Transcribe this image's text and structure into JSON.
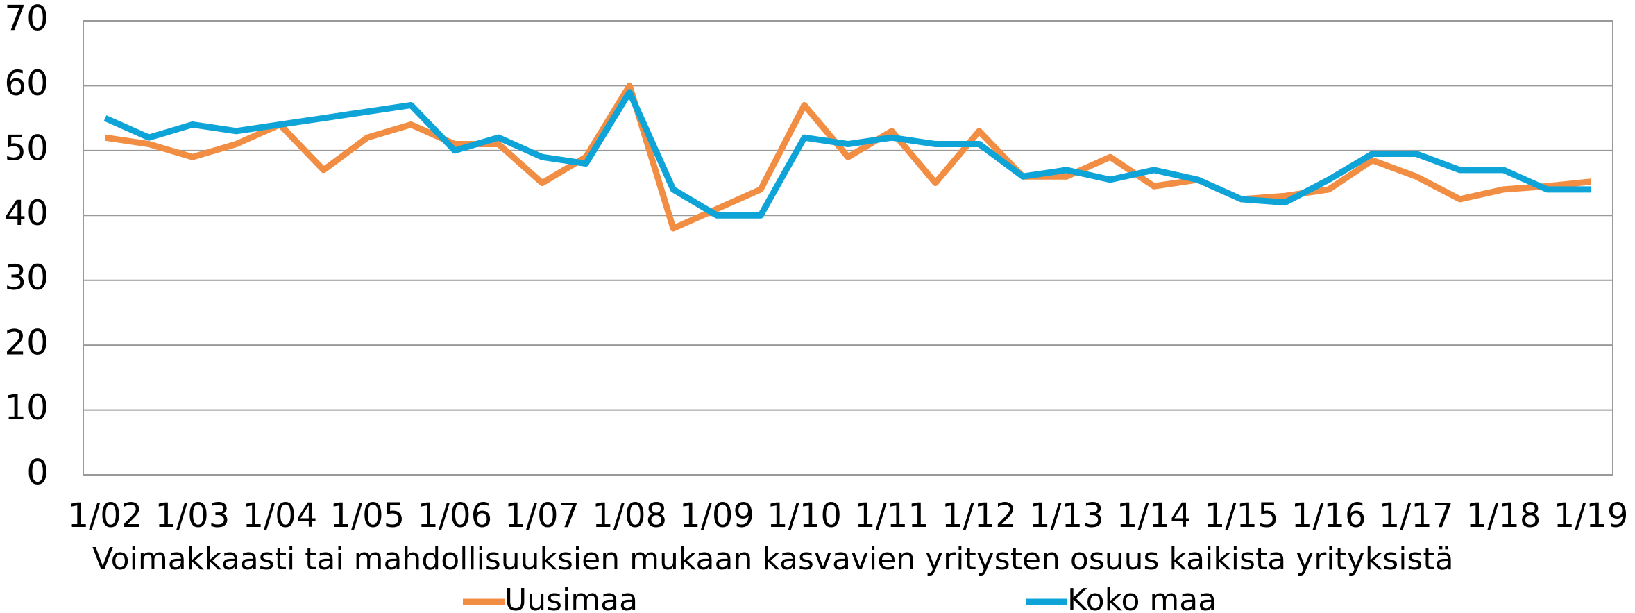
{
  "chart_data": {
    "type": "line",
    "x_label": "Voimakkaasti tai mahdollisuuksien mukaan kasvavien yritysten osuus kaikista yrityksistä",
    "categories": [
      "1/02",
      null,
      "1/03",
      null,
      "1/04",
      null,
      "1/05",
      null,
      "1/06",
      null,
      "1/07",
      null,
      "1/08",
      null,
      "1/09",
      null,
      "1/10",
      null,
      "1/11",
      null,
      "1/12",
      null,
      "1/13",
      null,
      "1/14",
      null,
      "1/15",
      null,
      "1/16",
      null,
      "1/17",
      null,
      "1/18",
      null,
      "1/19"
    ],
    "series": [
      {
        "name": "Uusimaa",
        "color": "#f28e43",
        "values": [
          52,
          51,
          49,
          51,
          54,
          47,
          52,
          54,
          51,
          51,
          45,
          49,
          60,
          38,
          41,
          44,
          57,
          49,
          53,
          45,
          53,
          46,
          46,
          49,
          44.5,
          45.5,
          42.5,
          43,
          44,
          48.5,
          46,
          42.5,
          44,
          44.5,
          45.2
        ]
      },
      {
        "name": "Koko maa",
        "color": "#0fa4d8",
        "values": [
          55,
          52,
          54,
          53,
          54,
          55,
          56,
          57,
          50,
          52,
          49,
          48,
          59,
          44,
          40,
          40,
          52,
          51,
          52,
          51,
          51,
          46,
          47,
          45.5,
          47,
          45.5,
          42.5,
          42,
          45.5,
          49.5,
          49.5,
          47,
          47,
          44,
          44
        ]
      }
    ],
    "ylim": [
      0,
      70
    ],
    "yticks": [
      0,
      10,
      20,
      30,
      40,
      50,
      60,
      70
    ],
    "grid": true,
    "legend": "bottom"
  }
}
